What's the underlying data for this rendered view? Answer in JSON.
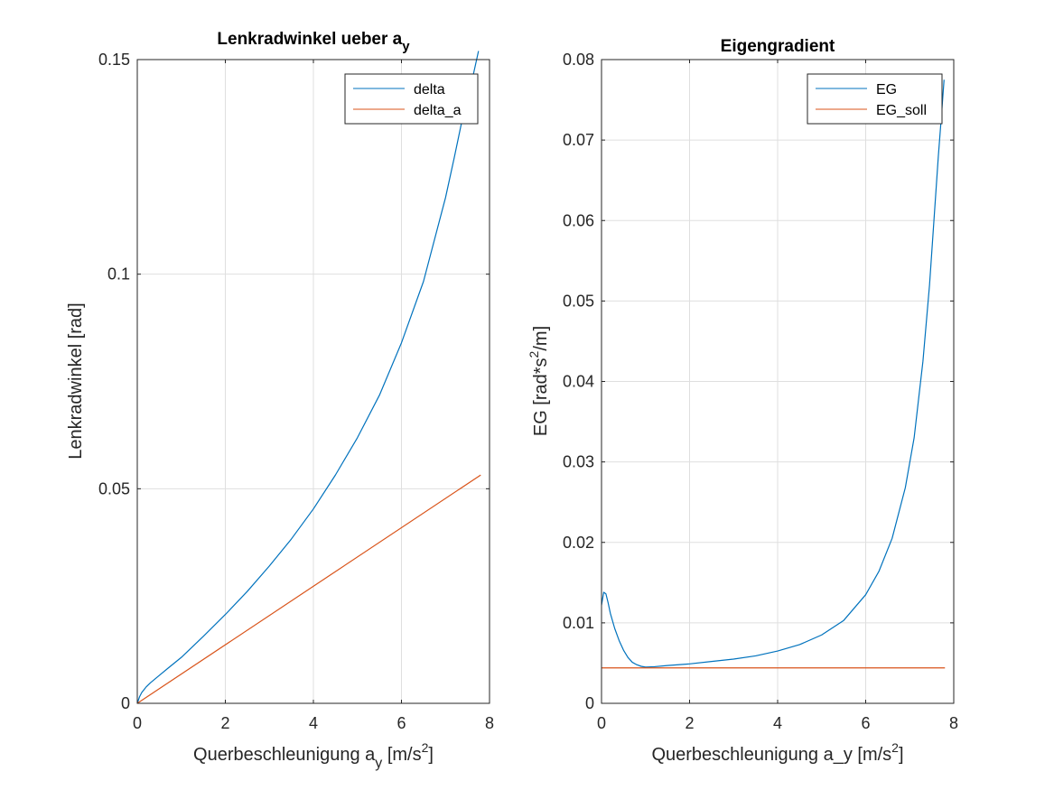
{
  "chart_data": [
    {
      "type": "line",
      "title": "Lenkradwinkel ueber a",
      "title_sub": "y",
      "xlabel": "Querbeschleunigung a",
      "xlabel_sub": "y",
      "xlabel_unit": " [m/s",
      "xlabel_sup": "2",
      "xlabel_end": "]",
      "ylabel": "Lenkradwinkel [rad]",
      "xlim": [
        0,
        8
      ],
      "ylim": [
        0,
        0.15
      ],
      "xticks": [
        0,
        2,
        4,
        6,
        8
      ],
      "xtick_labels": [
        "0",
        "2",
        "4",
        "6",
        "8"
      ],
      "yticks": [
        0,
        0.05,
        0.1,
        0.15
      ],
      "ytick_labels": [
        "0",
        "0.05",
        "0.1",
        "0.15"
      ],
      "grid": true,
      "legend_position": "top-right",
      "series": [
        {
          "name": "delta",
          "color": "#0072BD",
          "x": [
            0,
            0.05,
            0.1,
            0.2,
            0.3,
            0.5,
            0.7,
            1.0,
            1.5,
            2.0,
            2.5,
            3.0,
            3.5,
            4.0,
            4.5,
            5.0,
            5.5,
            6.0,
            6.5,
            7.0,
            7.2,
            7.4,
            7.6,
            7.75
          ],
          "y": [
            0,
            0.0015,
            0.0025,
            0.0038,
            0.0048,
            0.0065,
            0.0082,
            0.0107,
            0.0156,
            0.0207,
            0.0261,
            0.032,
            0.0383,
            0.0453,
            0.0532,
            0.0619,
            0.0718,
            0.084,
            0.0983,
            0.1178,
            0.1272,
            0.137,
            0.145,
            0.152
          ]
        },
        {
          "name": "delta_a",
          "color": "#D95319",
          "x": [
            0,
            7.8
          ],
          "y": [
            0,
            0.0532
          ]
        }
      ]
    },
    {
      "type": "line",
      "title": "Eigengradient",
      "xlabel": "Querbeschleunigung a_y [m/s",
      "xlabel_sup": "2",
      "xlabel_end": "]",
      "ylabel": "EG [rad*s",
      "ylabel_sup": "2",
      "ylabel_end": "/m]",
      "xlim": [
        0,
        8
      ],
      "ylim": [
        0,
        0.08
      ],
      "xticks": [
        0,
        2,
        4,
        6,
        8
      ],
      "xtick_labels": [
        "0",
        "2",
        "4",
        "6",
        "8"
      ],
      "yticks": [
        0,
        0.01,
        0.02,
        0.03,
        0.04,
        0.05,
        0.06,
        0.07,
        0.08
      ],
      "ytick_labels": [
        "0",
        "0.01",
        "0.02",
        "0.03",
        "0.04",
        "0.05",
        "0.06",
        "0.07",
        "0.08"
      ],
      "grid": true,
      "legend_position": "top-right",
      "series": [
        {
          "name": "EG",
          "color": "#0072BD",
          "x": [
            0.0,
            0.05,
            0.1,
            0.15,
            0.2,
            0.3,
            0.4,
            0.5,
            0.6,
            0.7,
            0.8,
            0.9,
            1.0,
            1.2,
            1.5,
            2.0,
            2.5,
            3.0,
            3.5,
            4.0,
            4.5,
            5.0,
            5.5,
            6.0,
            6.3,
            6.6,
            6.9,
            7.1,
            7.3,
            7.45,
            7.55,
            7.65,
            7.72,
            7.78
          ],
          "y": [
            0.0122,
            0.0138,
            0.0136,
            0.0125,
            0.0112,
            0.0093,
            0.0078,
            0.0066,
            0.0057,
            0.0051,
            0.0048,
            0.0046,
            0.0045,
            0.00455,
            0.0047,
            0.0049,
            0.0052,
            0.0055,
            0.0059,
            0.0065,
            0.0073,
            0.0085,
            0.0103,
            0.0135,
            0.0164,
            0.0205,
            0.0268,
            0.033,
            0.0425,
            0.052,
            0.06,
            0.068,
            0.073,
            0.0775
          ]
        },
        {
          "name": "EG_soll",
          "color": "#D95319",
          "x": [
            0,
            7.8
          ],
          "y": [
            0.0044,
            0.0044
          ]
        }
      ]
    }
  ]
}
